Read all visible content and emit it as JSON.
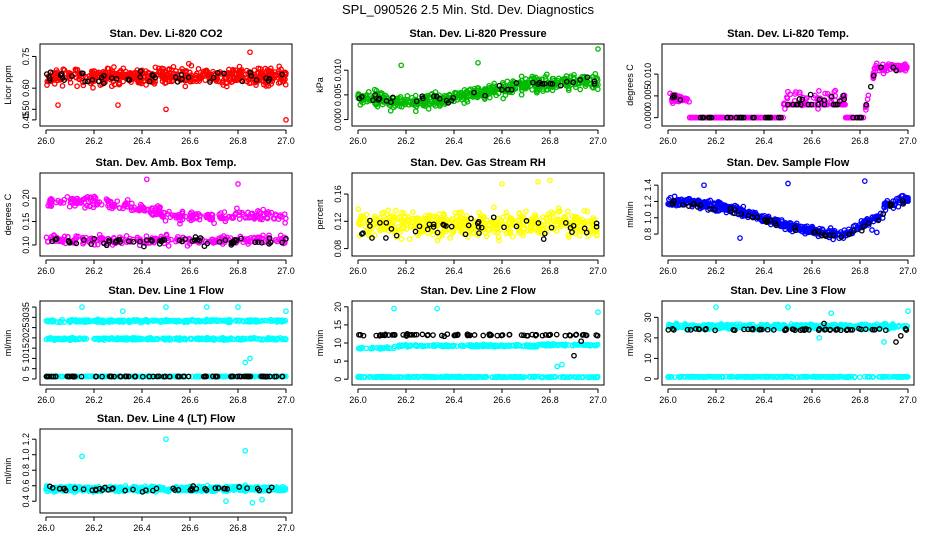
{
  "title": "SPL_090526  2.5 Min. Std. Dev. Diagnostics",
  "chart_data": [
    {
      "type": "scatter",
      "title": "Stan. Dev. Li-820 CO2",
      "ylabel": "Licor ppm",
      "xlim": [
        26.0,
        27.0
      ],
      "ylim": [
        0.44,
        0.79
      ],
      "xticks": [
        26.0,
        26.2,
        26.4,
        26.6,
        26.8,
        27.0
      ],
      "xtick_labels": [
        "26.0",
        "26.2",
        "26.4",
        "26.6",
        "26.8",
        "27.0"
      ],
      "yticks": [
        0.45,
        0.5,
        0.6,
        0.75
      ],
      "ytick_labels": [
        "0.45",
        "0.50",
        "0.60",
        "0.75"
      ],
      "series": [
        {
          "name": "all",
          "color": "#ff0000",
          "count": 500,
          "seed": 11,
          "kind": "band",
          "base": 0.655,
          "spread": 0.05,
          "outliers": [
            [
              26.5,
              0.5
            ],
            [
              27.0,
              0.45
            ],
            [
              26.05,
              0.52
            ],
            [
              26.3,
              0.52
            ],
            [
              26.85,
              0.77
            ]
          ]
        },
        {
          "name": "selected",
          "color": "#000000",
          "count": 45,
          "seed": 12,
          "kind": "band",
          "base": 0.65,
          "spread": 0.035
        }
      ]
    },
    {
      "type": "scatter",
      "title": "Stan. Dev. Li-820 Pressure",
      "ylabel": "kPa",
      "xlim": [
        26.0,
        27.0
      ],
      "ylim": [
        -0.0005,
        0.0145
      ],
      "xticks": [
        26.0,
        26.2,
        26.4,
        26.6,
        26.8,
        27.0
      ],
      "xtick_labels": [
        "26.0",
        "26.2",
        "26.4",
        "26.6",
        "26.8",
        "27.0"
      ],
      "yticks": [
        0.0,
        0.005,
        0.01
      ],
      "ytick_labels": [
        "0.000",
        "0.005",
        "0.010"
      ],
      "series": [
        {
          "name": "all",
          "color": "#00bb00",
          "count": 500,
          "seed": 21,
          "kind": "wave",
          "base": 0.0045,
          "spread": 0.0018,
          "amp": -0.001,
          "period": 1.0,
          "phase": 0.0,
          "trend": 0.003,
          "outliers": [
            [
              26.18,
              0.011
            ],
            [
              26.5,
              0.0115
            ],
            [
              27.0,
              0.0143
            ],
            [
              26.9,
              0.0085
            ]
          ]
        },
        {
          "name": "selected",
          "color": "#000000",
          "count": 40,
          "seed": 22,
          "kind": "wave",
          "base": 0.0045,
          "spread": 0.001,
          "amp": -0.0008,
          "period": 1.0,
          "phase": 0.0,
          "trend": 0.0035
        }
      ]
    },
    {
      "type": "scatter",
      "title": "Stan. Dev. Li-820 Temp.",
      "ylabel": "degrees C",
      "xlim": [
        26.0,
        27.0
      ],
      "ylim": [
        -0.001,
        0.016
      ],
      "xticks": [
        26.0,
        26.2,
        26.4,
        26.6,
        26.8,
        27.0
      ],
      "xtick_labels": [
        "26.0",
        "26.2",
        "26.4",
        "26.6",
        "26.8",
        "27.0"
      ],
      "yticks": [
        0.0,
        0.005,
        0.01
      ],
      "ytick_labels": [
        "0.000",
        "0.005",
        "0.010"
      ],
      "series": [
        {
          "name": "all",
          "color": "#ff00ff",
          "count": 420,
          "seed": 31,
          "kind": "temp",
          "base": 0.0,
          "spread": 0.0
        },
        {
          "name": "selected",
          "color": "#000000",
          "count": 60,
          "seed": 32,
          "kind": "temp",
          "base": 0.0,
          "spread": 0.0
        }
      ]
    },
    {
      "type": "scatter",
      "title": "Stan. Dev. Amb. Box Temp.",
      "ylabel": "degrees C",
      "xlim": [
        26.0,
        27.0
      ],
      "ylim": [
        0.085,
        0.245
      ],
      "xticks": [
        26.0,
        26.2,
        26.4,
        26.6,
        26.8,
        27.0
      ],
      "xtick_labels": [
        "26.0",
        "26.2",
        "26.4",
        "26.6",
        "26.8",
        "27.0"
      ],
      "yticks": [
        0.1,
        0.15,
        0.2
      ],
      "ytick_labels": [
        "0.10",
        "0.15",
        "0.20"
      ],
      "series": [
        {
          "name": "all",
          "color": "#ff00ff",
          "count": 260,
          "seed": 41,
          "kind": "wave",
          "base": 0.185,
          "spread": 0.014,
          "amp": 0.01,
          "period": 0.8,
          "phase": 0.3,
          "trend": -0.04,
          "outliers": [
            [
              26.42,
              0.24
            ],
            [
              26.8,
              0.23
            ]
          ]
        },
        {
          "name": "all2",
          "color": "#ff00ff",
          "count": 220,
          "seed": 42,
          "kind": "band",
          "base": 0.11,
          "spread": 0.012
        },
        {
          "name": "selected",
          "color": "#000000",
          "count": 60,
          "seed": 43,
          "kind": "band",
          "base": 0.108,
          "spread": 0.01
        }
      ]
    },
    {
      "type": "scatter",
      "title": "Stan. Dev. Gas Stream RH",
      "ylabel": "percent",
      "xlim": [
        26.0,
        27.0
      ],
      "ylim": [
        0.075,
        0.185
      ],
      "xticks": [
        26.0,
        26.2,
        26.4,
        26.6,
        26.8,
        27.0
      ],
      "xtick_labels": [
        "26.0",
        "26.2",
        "26.4",
        "26.6",
        "26.8",
        "27.0"
      ],
      "yticks": [
        0.08,
        0.12,
        0.16
      ],
      "ytick_labels": [
        "0.08",
        "0.12",
        "0.16"
      ],
      "series": [
        {
          "name": "all",
          "color": "#ffff00",
          "count": 500,
          "seed": 51,
          "kind": "band",
          "base": 0.115,
          "spread": 0.022,
          "outliers": [
            [
              26.6,
              0.175
            ],
            [
              26.75,
              0.178
            ],
            [
              26.8,
              0.18
            ]
          ]
        },
        {
          "name": "selected",
          "color": "#000000",
          "count": 45,
          "seed": 52,
          "kind": "band",
          "base": 0.112,
          "spread": 0.018
        }
      ]
    },
    {
      "type": "scatter",
      "title": "Stan. Dev. Sample Flow",
      "ylabel": "ml/min",
      "xlim": [
        26.0,
        27.0
      ],
      "ylim": [
        0.58,
        1.5
      ],
      "xticks": [
        26.0,
        26.2,
        26.4,
        26.6,
        26.8,
        27.0
      ],
      "xtick_labels": [
        "26.0",
        "26.2",
        "26.4",
        "26.6",
        "26.8",
        "27.0"
      ],
      "yticks": [
        0.8,
        1.0,
        1.2,
        1.4
      ],
      "ytick_labels": [
        "0.8",
        "1.0",
        "1.2",
        "1.4"
      ],
      "series": [
        {
          "name": "all",
          "color": "#0000ff",
          "count": 500,
          "seed": 61,
          "kind": "vflow",
          "base": 1.2,
          "spread": 0.07,
          "outliers": [
            [
              26.15,
              1.4
            ],
            [
              26.5,
              1.42
            ],
            [
              26.82,
              1.45
            ],
            [
              26.85,
              0.85
            ],
            [
              26.87,
              0.82
            ],
            [
              26.3,
              0.75
            ]
          ]
        },
        {
          "name": "selected",
          "color": "#000000",
          "count": 50,
          "seed": 62,
          "kind": "vflow",
          "base": 1.18,
          "spread": 0.05
        }
      ]
    },
    {
      "type": "scatter",
      "title": "Stan. Dev. Line 1 Flow",
      "ylabel": "ml/min",
      "xlim": [
        26.0,
        27.0
      ],
      "ylim": [
        -1,
        36
      ],
      "xticks": [
        26.0,
        26.2,
        26.4,
        26.6,
        26.8,
        27.0
      ],
      "xtick_labels": [
        "26.0",
        "26.2",
        "26.4",
        "26.6",
        "26.8",
        "27.0"
      ],
      "yticks": [
        0,
        5,
        10,
        15,
        20,
        25,
        30,
        35
      ],
      "ytick_labels": [
        "0",
        "5",
        "10",
        "15",
        "20",
        "25",
        "30",
        "35"
      ],
      "series": [
        {
          "name": "upper",
          "color": "#00ffff",
          "count": 260,
          "seed": 71,
          "kind": "band",
          "base": 28.2,
          "spread": 0.8,
          "outliers": [
            [
              26.15,
              35
            ],
            [
              26.32,
              33
            ],
            [
              26.5,
              35
            ],
            [
              26.67,
              35
            ],
            [
              26.8,
              35
            ],
            [
              27.0,
              33
            ]
          ]
        },
        {
          "name": "middle",
          "color": "#00ffff",
          "count": 260,
          "seed": 72,
          "kind": "band",
          "base": 19.5,
          "spread": 0.7,
          "outliers": [
            [
              26.85,
              10
            ],
            [
              26.83,
              8
            ]
          ]
        },
        {
          "name": "lower",
          "color": "#00ffff",
          "count": 250,
          "seed": 73,
          "kind": "band",
          "base": 1.2,
          "spread": 0.2
        },
        {
          "name": "selected",
          "color": "#000000",
          "count": 80,
          "seed": 74,
          "kind": "band",
          "base": 1.2,
          "spread": 0.15
        }
      ]
    },
    {
      "type": "scatter",
      "title": "Stan. Dev. Line 2 Flow",
      "ylabel": "ml/min",
      "xlim": [
        26.0,
        27.0
      ],
      "ylim": [
        -0.5,
        20.5
      ],
      "xticks": [
        26.0,
        26.2,
        26.4,
        26.6,
        26.8,
        27.0
      ],
      "xtick_labels": [
        "26.0",
        "26.2",
        "26.4",
        "26.6",
        "26.8",
        "27.0"
      ],
      "yticks": [
        0,
        5,
        10,
        15,
        20
      ],
      "ytick_labels": [
        "0",
        "5",
        "10",
        "15",
        "20"
      ],
      "series": [
        {
          "name": "upper",
          "color": "#00ffff",
          "count": 260,
          "seed": 81,
          "kind": "line2",
          "base": 8.6,
          "spread": 0.4,
          "outliers": [
            [
              26.15,
              19.5
            ],
            [
              26.33,
              19.5
            ],
            [
              27.0,
              18.5
            ],
            [
              26.85,
              4
            ],
            [
              26.83,
              3.5
            ]
          ]
        },
        {
          "name": "lower",
          "color": "#00ffff",
          "count": 250,
          "seed": 82,
          "kind": "band",
          "base": 0.6,
          "spread": 0.15
        },
        {
          "name": "selected",
          "color": "#000000",
          "count": 80,
          "seed": 83,
          "kind": "band",
          "base": 12.2,
          "spread": 0.3,
          "outliers": [
            [
              26.9,
              6.5
            ],
            [
              26.93,
              10.5
            ]
          ]
        }
      ]
    },
    {
      "type": "scatter",
      "title": "Stan. Dev. Line 3 Flow",
      "ylabel": "ml/min",
      "xlim": [
        26.0,
        27.0
      ],
      "ylim": [
        -1,
        36
      ],
      "xticks": [
        26.0,
        26.2,
        26.4,
        26.6,
        26.8,
        27.0
      ],
      "xtick_labels": [
        "26.0",
        "26.2",
        "26.4",
        "26.6",
        "26.8",
        "27.0"
      ],
      "yticks": [
        0,
        10,
        20,
        30
      ],
      "ytick_labels": [
        "0",
        "10",
        "20",
        "30"
      ],
      "series": [
        {
          "name": "upper",
          "color": "#00ffff",
          "count": 460,
          "seed": 91,
          "kind": "band",
          "base": 25.5,
          "spread": 1.4,
          "outliers": [
            [
              26.2,
              35
            ],
            [
              26.5,
              35
            ],
            [
              26.68,
              32
            ],
            [
              27.0,
              33
            ],
            [
              26.63,
              20
            ],
            [
              26.9,
              18
            ]
          ]
        },
        {
          "name": "lower",
          "color": "#00ffff",
          "count": 250,
          "seed": 92,
          "kind": "band",
          "base": 1.0,
          "spread": 0.2
        },
        {
          "name": "selected",
          "color": "#000000",
          "count": 60,
          "seed": 93,
          "kind": "band",
          "base": 24.0,
          "spread": 0.5,
          "outliers": [
            [
              26.95,
              18
            ],
            [
              26.97,
              21
            ],
            [
              26.65,
              27
            ]
          ]
        }
      ]
    },
    {
      "type": "scatter",
      "title": "Stan. Dev. Line 4 (LT) Flow",
      "ylabel": "ml/min",
      "xlim": [
        26.0,
        27.0
      ],
      "ylim": [
        0.3,
        1.28
      ],
      "xticks": [
        26.0,
        26.2,
        26.4,
        26.6,
        26.8,
        27.0
      ],
      "xtick_labels": [
        "26.0",
        "26.2",
        "26.4",
        "26.6",
        "26.8",
        "27.0"
      ],
      "yticks": [
        0.4,
        0.6,
        0.8,
        1.0,
        1.2
      ],
      "ytick_labels": [
        "0.4",
        "0.6",
        "0.8",
        "1.0",
        "1.2"
      ],
      "series": [
        {
          "name": "all",
          "color": "#00ffff",
          "count": 500,
          "seed": 101,
          "kind": "band",
          "base": 0.56,
          "spread": 0.04,
          "outliers": [
            [
              26.15,
              0.98
            ],
            [
              26.5,
              1.2
            ],
            [
              26.83,
              1.05
            ],
            [
              26.86,
              0.38
            ],
            [
              26.9,
              0.42
            ],
            [
              26.75,
              0.4
            ]
          ]
        },
        {
          "name": "selected",
          "color": "#000000",
          "count": 45,
          "seed": 102,
          "kind": "band",
          "base": 0.56,
          "spread": 0.035
        }
      ]
    }
  ]
}
